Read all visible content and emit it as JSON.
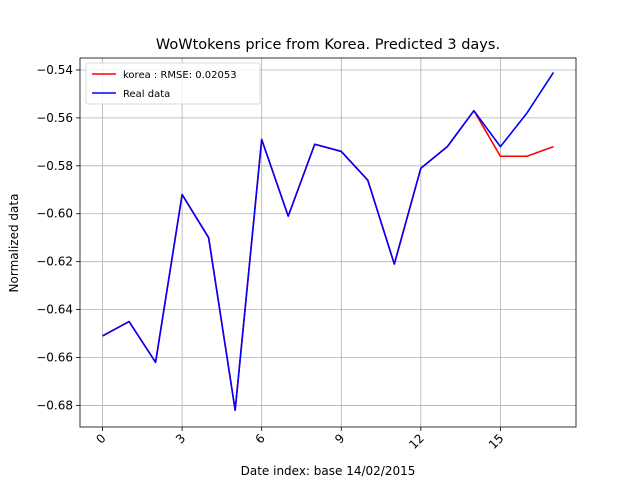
{
  "chart_data": {
    "type": "line",
    "title": "WoWtokens price from Korea. Predicted 3 days.",
    "xlabel": "Date index: base 14/02/2015",
    "ylabel": "Normalized data",
    "xlim": [
      -0.85,
      17.85
    ],
    "ylim": [
      -0.689,
      -0.535
    ],
    "x_ticks": [
      0,
      3,
      6,
      9,
      12,
      15
    ],
    "x_tick_labels": [
      "0",
      "3",
      "6",
      "9",
      "12",
      "15"
    ],
    "y_ticks": [
      -0.68,
      -0.66,
      -0.64,
      -0.62,
      -0.6,
      -0.58,
      -0.56,
      -0.54
    ],
    "y_tick_labels": [
      "−0.68",
      "−0.66",
      "−0.64",
      "−0.62",
      "−0.60",
      "−0.58",
      "−0.56",
      "−0.54"
    ],
    "grid": true,
    "legend_position": "upper-left",
    "x": [
      0,
      1,
      2,
      3,
      4,
      5,
      6,
      7,
      8,
      9,
      10,
      11,
      12,
      13,
      14,
      15,
      16,
      17
    ],
    "series": [
      {
        "name": "korea : RMSE: 0.02053",
        "color": "#ff0000",
        "values": [
          -0.651,
          -0.645,
          -0.662,
          -0.592,
          -0.61,
          -0.682,
          -0.569,
          -0.601,
          -0.571,
          -0.574,
          -0.586,
          -0.621,
          -0.581,
          -0.572,
          -0.557,
          -0.576,
          -0.576,
          -0.572
        ]
      },
      {
        "name": "Real data",
        "color": "#0000ff",
        "values": [
          -0.651,
          -0.645,
          -0.662,
          -0.592,
          -0.61,
          -0.682,
          -0.569,
          -0.601,
          -0.571,
          -0.574,
          -0.586,
          -0.621,
          -0.581,
          -0.572,
          -0.557,
          -0.572,
          -0.558,
          -0.541
        ]
      }
    ]
  }
}
